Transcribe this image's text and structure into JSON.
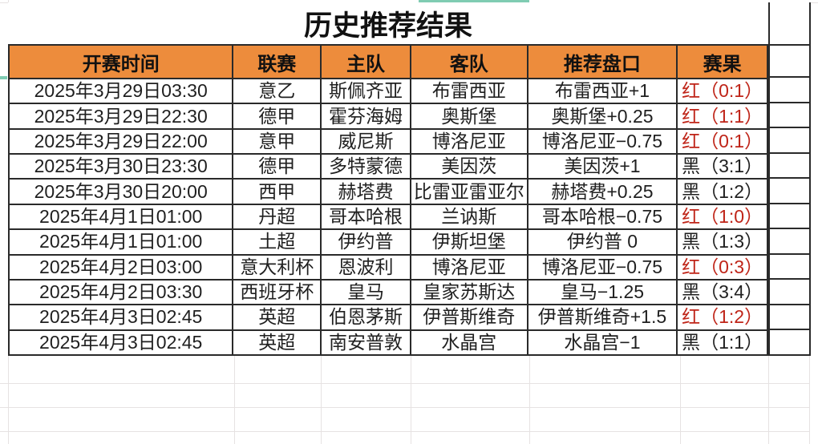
{
  "title": "历史推荐结果",
  "columns": [
    "开赛时间",
    "联赛",
    "主队",
    "客队",
    "推荐盘口",
    "赛果"
  ],
  "rows": [
    {
      "time": "2025年3月29日03:30",
      "league": "意乙",
      "home": "斯佩齐亚",
      "away": "布雷西亚",
      "handicap": "布雷西亚+1",
      "result": "红（0:1）",
      "outcome": "win"
    },
    {
      "time": "2025年3月29日22:30",
      "league": "德甲",
      "home": "霍芬海姆",
      "away": "奥斯堡",
      "handicap": "奥斯堡+0.25",
      "result": "红（1:1）",
      "outcome": "win"
    },
    {
      "time": "2025年3月29日22:00",
      "league": "意甲",
      "home": "威尼斯",
      "away": "博洛尼亚",
      "handicap": "博洛尼亚−0.75",
      "result": "红（0:1）",
      "outcome": "win"
    },
    {
      "time": "2025年3月30日23:30",
      "league": "德甲",
      "home": "多特蒙德",
      "away": "美因茨",
      "handicap": "美因茨+1",
      "result": "黑（3:1）",
      "outcome": "loss"
    },
    {
      "time": "2025年3月30日20:00",
      "league": "西甲",
      "home": "赫塔费",
      "away": "比雷亚雷亚尔",
      "handicap": "赫塔费+0.25",
      "result": "黑（1:2）",
      "outcome": "loss"
    },
    {
      "time": "2025年4月1日01:00",
      "league": "丹超",
      "home": "哥本哈根",
      "away": "兰讷斯",
      "handicap": "哥本哈根−0.75",
      "result": "红（1:0）",
      "outcome": "win"
    },
    {
      "time": "2025年4月1日01:00",
      "league": "土超",
      "home": "伊约普",
      "away": "伊斯坦堡",
      "handicap": "伊约普 0",
      "result": "黑（1:3）",
      "outcome": "loss"
    },
    {
      "time": "2025年4月2日03:00",
      "league": "意大利杯",
      "home": "恩波利",
      "away": "博洛尼亚",
      "handicap": "博洛尼亚−0.75",
      "result": "红（0:3）",
      "outcome": "win"
    },
    {
      "time": "2025年4月2日03:30",
      "league": "西班牙杯",
      "home": "皇马",
      "away": "皇家苏斯达",
      "handicap": "皇马−1.25",
      "result": "黑（3:4）",
      "outcome": "loss"
    },
    {
      "time": "2025年4月3日02:45",
      "league": "英超",
      "home": "伯恩茅斯",
      "away": "伊普斯维奇",
      "handicap": "伊普斯维奇+1.5",
      "result": "红（1:2）",
      "outcome": "win"
    },
    {
      "time": "2025年4月3日02:45",
      "league": "英超",
      "home": "南安普敦",
      "away": "水晶宫",
      "handicap": "水晶宫−1",
      "result": "黑（1:1）",
      "outcome": "loss"
    }
  ],
  "colors": {
    "header_bg": "#ed8c3c",
    "win_text": "#bf2418",
    "loss_text": "#1f1f1f",
    "border_dark": "#2a2a2a",
    "grid_faint": "#e6e2e2",
    "selection_teal": "#7fccb2"
  }
}
